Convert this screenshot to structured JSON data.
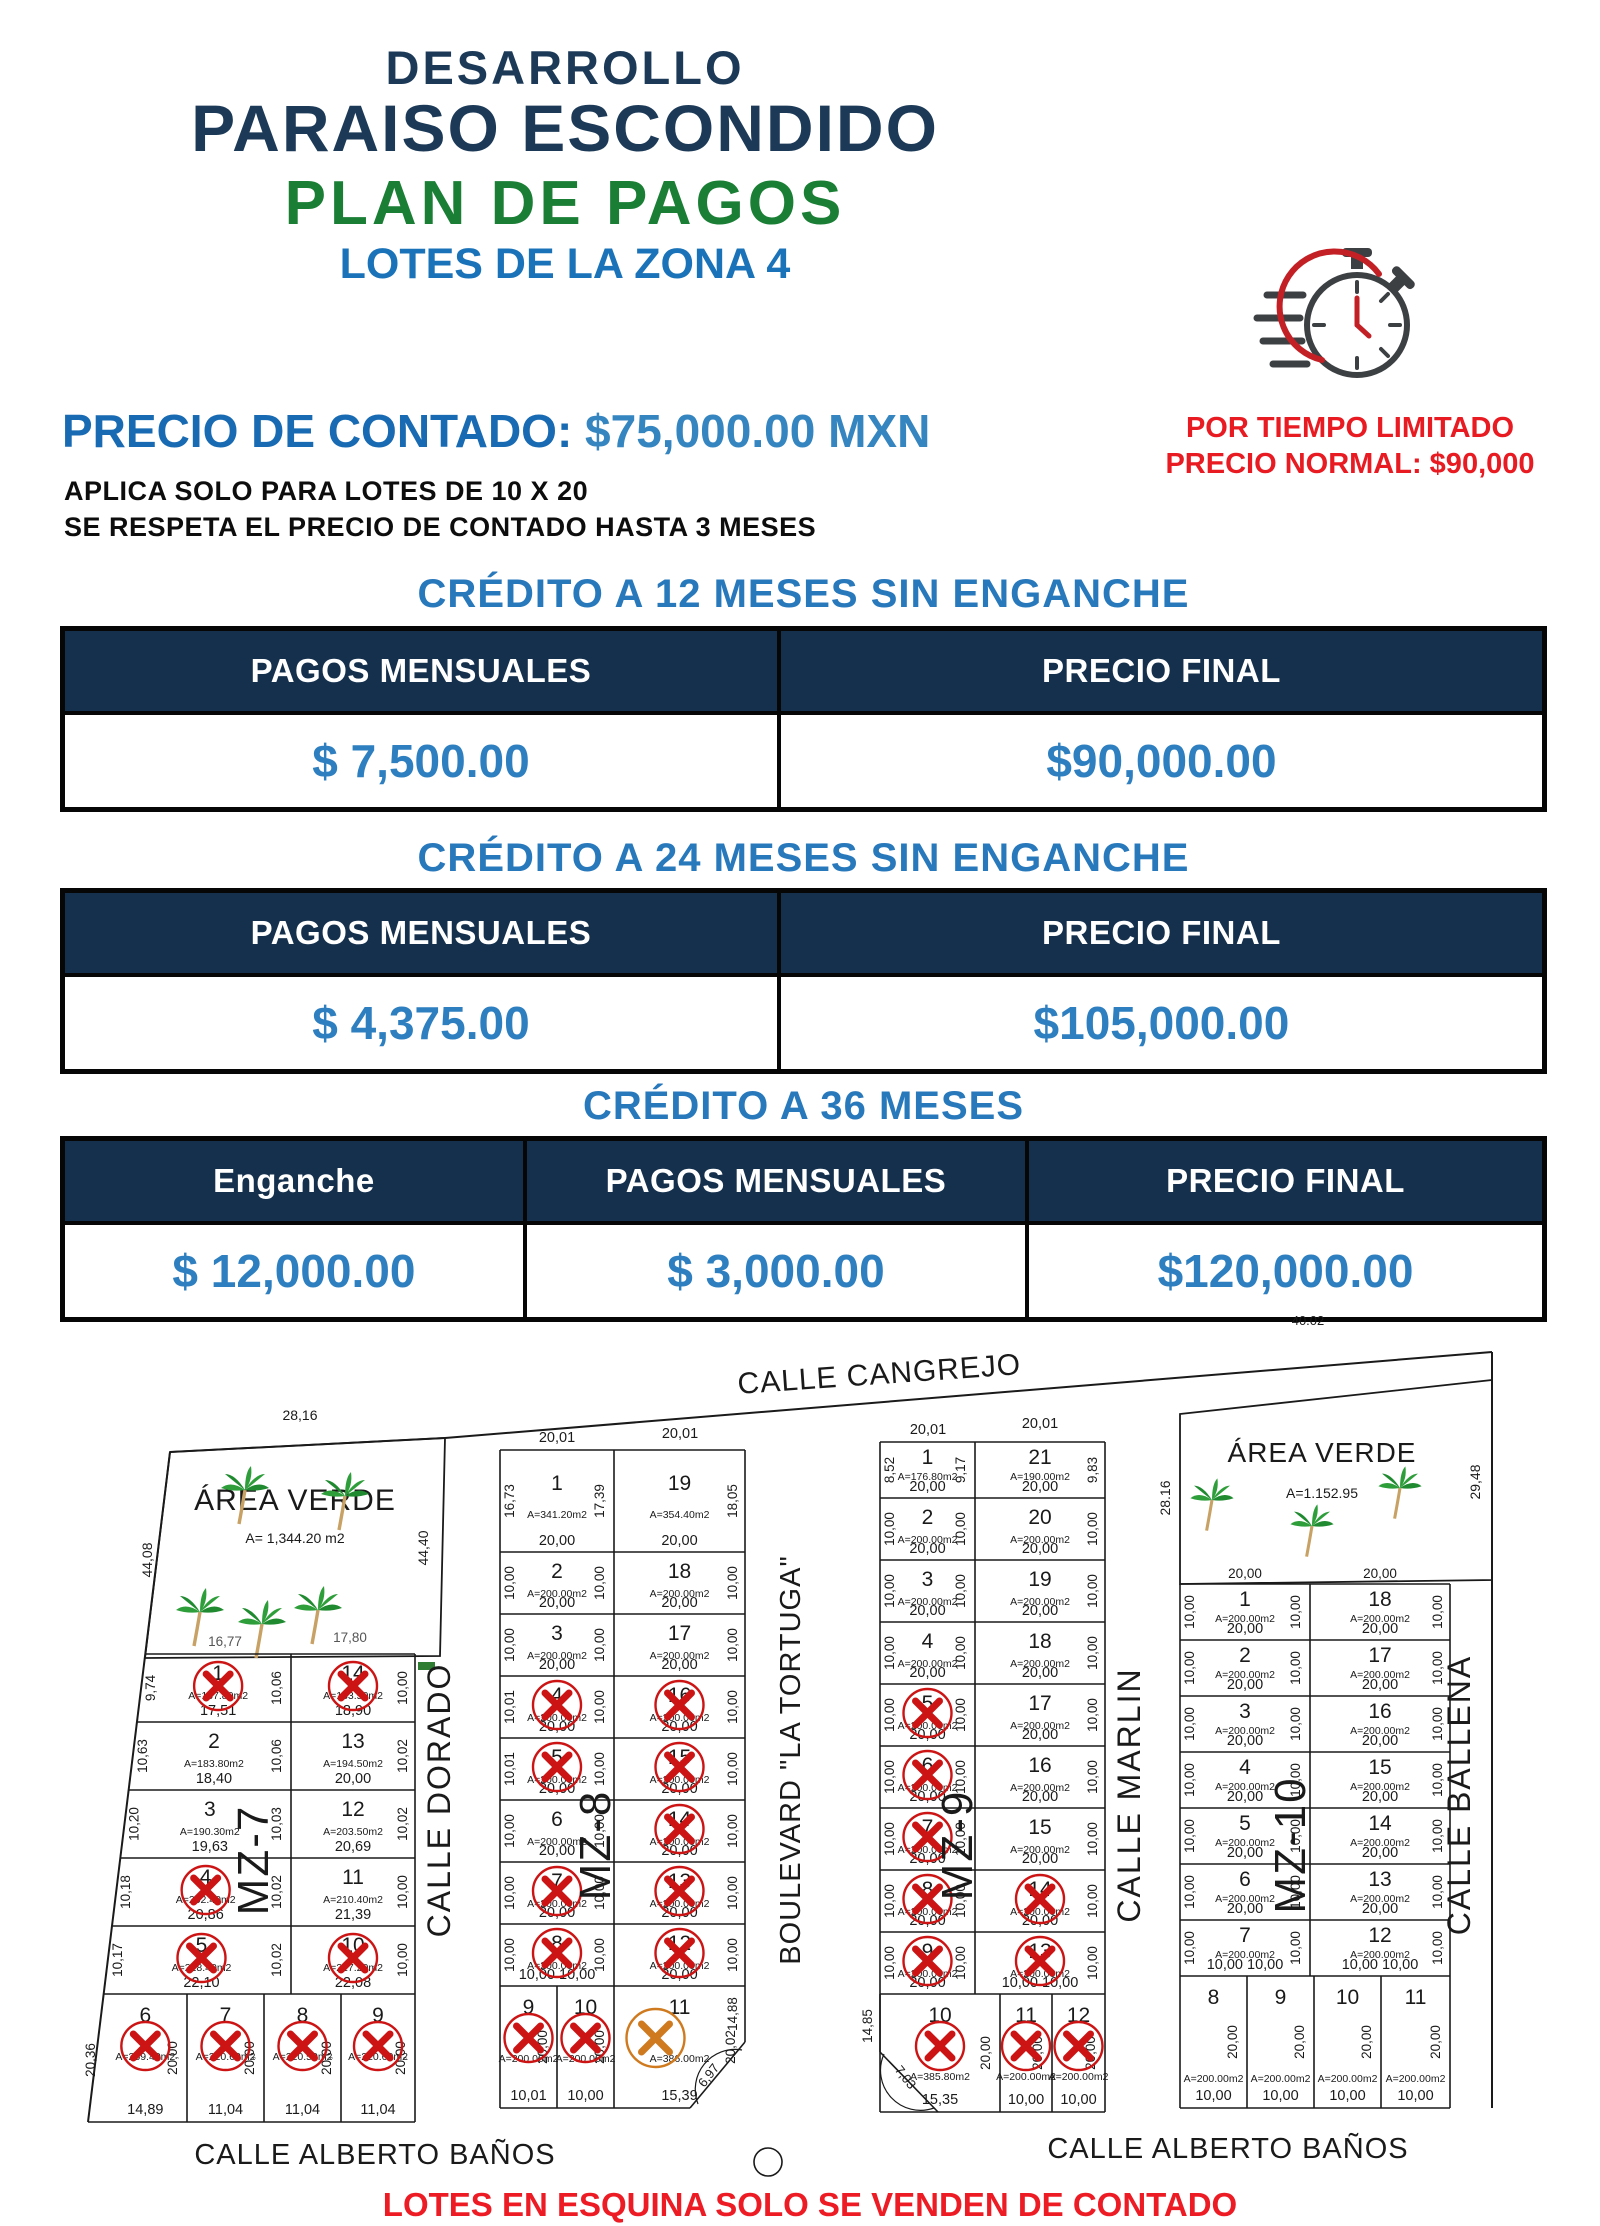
{
  "header": {
    "line1": "DESARROLLO",
    "line2": "PARAISO ESCONDIDO",
    "line3": "PLAN DE PAGOS",
    "zone_title": "LOTES DE LA ZONA 4",
    "cash_label": "PRECIO DE CONTADO:",
    "cash_value": " $75,000.00 MXN",
    "note1": "APLICA SOLO PARA LOTES DE 10 X 20",
    "note2": "SE RESPETA EL PRECIO DE CONTADO HASTA 3 MESES",
    "limited1": "POR TIEMPO LIMITADO",
    "limited2": "PRECIO NORMAL: $90,000",
    "stopwatch_icon": "stopwatch-icon"
  },
  "colors": {
    "navy": "#14304d",
    "title_navy": "#1c3a57",
    "green": "#1a7e35",
    "blue": "#2e7fc0",
    "red": "#e81b22",
    "sold_x": "#cc1414",
    "corner_x": "#cf7a1e"
  },
  "tables": [
    {
      "title": "CRÉDITO A 12 MESES SIN ENGANCHE",
      "headers": [
        "PAGOS MENSUALES",
        "PRECIO FINAL"
      ],
      "values": [
        "$ 7,500.00",
        "$90,000.00"
      ]
    },
    {
      "title": "CRÉDITO A 24 MESES SIN ENGANCHE",
      "headers": [
        "PAGOS MENSUALES",
        "PRECIO FINAL"
      ],
      "values": [
        "$ 4,375.00",
        "$105,000.00"
      ]
    },
    {
      "title": "CRÉDITO A 36 MESES",
      "headers": [
        "Enganche",
        "PAGOS MENSUALES",
        "PRECIO FINAL"
      ],
      "values": [
        "$ 12,000.00",
        "$ 3,000.00",
        "$120,000.00"
      ]
    }
  ],
  "map": {
    "note": "LOTES EN ESQUINA SOLO SE VENDEN DE CONTADO",
    "streets": {
      "cangrejo": "CALLE CANGREJO",
      "dorado": "CALLE DORADO",
      "boulevard": "BOULEVARD \"LA TORTUGA\"",
      "marlin": "CALLE MARLIN",
      "ballena": "CALLE BALLENA",
      "alberto_l": "CALLE ALBERTO BAÑOS",
      "alberto_r": "CALLE ALBERTO BAÑOS"
    },
    "outer_dims": {
      "top_left": "28,16",
      "top_right": "40.02",
      "left_side": "44,08",
      "av_left_right": "44,40",
      "av_right_left": "28.16",
      "av_right_right": "29,48"
    },
    "av_left": {
      "label": "ÁREA VERDE",
      "area": "A= 1,344.20 m2"
    },
    "av_right": {
      "label": "ÁREA VERDE",
      "area": "A=1.152.95"
    },
    "mz7": {
      "label": "MZ-7",
      "top_dims": [
        "16,77",
        "17,80"
      ],
      "rows": [
        {
          "l": [
            "1",
            "A=167.80m2",
            "17,51",
            1
          ],
          "r": [
            "14",
            "A=183.50m2",
            "18,90",
            1
          ],
          "d": [
            "9,74",
            "10,06",
            "10,00"
          ]
        },
        {
          "l": [
            "2",
            "A=183.80m2",
            "18,40",
            0
          ],
          "r": [
            "13",
            "A=194.50m2",
            "20,00",
            0
          ],
          "d": [
            "10,63",
            "10,06",
            "10,02"
          ]
        },
        {
          "l": [
            "3",
            "A=190.30m2",
            "19,63",
            0
          ],
          "r": [
            "12",
            "A=203.50m2",
            "20,69",
            0
          ],
          "d": [
            "10,20",
            "10,03",
            "10,02"
          ]
        },
        {
          "l": [
            "4",
            "A=202.40m2",
            "20,86",
            1
          ],
          "r": [
            "11",
            "A=210.40m2",
            "21,39",
            0
          ],
          "d": [
            "10,18",
            "10,02",
            "10,00"
          ]
        },
        {
          "l": [
            "5",
            "A=218.40m2",
            "22,10",
            1
          ],
          "r": [
            "10",
            "A=217.20m2",
            "22,08",
            1
          ],
          "d": [
            "10,17",
            "10,02",
            "10,00"
          ]
        }
      ],
      "bottom": [
        [
          "6",
          "A=259.40m2",
          "14,89",
          1,
          "20,00"
        ],
        [
          "7",
          "A=220.60m2",
          "11,04",
          1,
          "20,00"
        ],
        [
          "8",
          "A=220.50m2",
          "11,04",
          1,
          "20,00"
        ],
        [
          "9",
          "A=220.60m2",
          "11,04",
          1,
          "20,00"
        ]
      ],
      "bottom_left_dim": "20,36"
    },
    "mz8": {
      "label": "MZ-8",
      "top_dims": [
        "20,01",
        "20,01"
      ],
      "rows": [
        {
          "l": [
            "1",
            "A=341.20m2",
            "20,00",
            0
          ],
          "r": [
            "19",
            "A=354.40m2",
            "20,00",
            0
          ],
          "d": [
            "16,73",
            "17,39",
            "18,05"
          ]
        },
        {
          "l": [
            "2",
            "A=200.00m2",
            "20,00",
            0
          ],
          "r": [
            "18",
            "A=200.00m2",
            "20,00",
            0
          ],
          "d": [
            "10,00",
            "10,00",
            "10,00"
          ]
        },
        {
          "l": [
            "3",
            "A=200.00m2",
            "20,00",
            0
          ],
          "r": [
            "17",
            "A=200.00m2",
            "20,00",
            0
          ],
          "d": [
            "10,00",
            "10,00",
            "10,00"
          ]
        },
        {
          "l": [
            "4",
            "A=200.00m2",
            "20,00",
            1
          ],
          "r": [
            "16",
            "A=200.00m2",
            "20,00",
            1
          ],
          "d": [
            "10,01",
            "10,00",
            "10,00"
          ]
        },
        {
          "l": [
            "5",
            "A=200.00m2",
            "20,00",
            1
          ],
          "r": [
            "15",
            "A=200.00m2",
            "20,00",
            1
          ],
          "d": [
            "10,01",
            "10,00",
            "10,00"
          ]
        },
        {
          "l": [
            "6",
            "A=200.00m2",
            "20,00",
            0
          ],
          "r": [
            "14",
            "A=200.00m2",
            "20,00",
            1
          ],
          "d": [
            "10,00",
            "10,00",
            "10,00"
          ]
        },
        {
          "l": [
            "7",
            "A=200.00m2",
            "20,00",
            1
          ],
          "r": [
            "13",
            "A=200.00m2",
            "20,00",
            1
          ],
          "d": [
            "10,00",
            "10,00",
            "10,00"
          ]
        },
        {
          "l": [
            "8",
            "A=200.00m2",
            "10,00   10,00",
            1
          ],
          "r": [
            "12",
            "A=200.00m2",
            "20,00",
            1
          ],
          "d": [
            "10,00",
            "10,00",
            "10,00"
          ]
        }
      ],
      "bottom": [
        [
          "9",
          "A=200.00m2",
          "10,01",
          1,
          "20,00"
        ],
        [
          "10",
          "A=200.00m2",
          "10,00",
          1,
          "20,00"
        ],
        [
          "11",
          "A=386.00m2",
          "15,39",
          2,
          "20,02"
        ]
      ],
      "corner": {
        "side": "14,88",
        "curve": "6,97"
      }
    },
    "mz9": {
      "label": "MZ-9",
      "top_dims": [
        "20,01",
        "20,01"
      ],
      "rows": [
        {
          "l": [
            "1",
            "A=176.80m2",
            "20,00",
            0
          ],
          "r": [
            "21",
            "A=190.00m2",
            "20,00",
            0
          ],
          "d": [
            "8,52",
            "9,17",
            "9,83"
          ]
        },
        {
          "l": [
            "2",
            "A=200.00m2",
            "20,00",
            0
          ],
          "r": [
            "20",
            "A=200.00m2",
            "20,00",
            0
          ],
          "d": [
            "10,00",
            "10,00",
            "10,00"
          ]
        },
        {
          "l": [
            "3",
            "A=200.00m2",
            "20,00",
            0
          ],
          "r": [
            "19",
            "A=200.00m2",
            "20,00",
            0
          ],
          "d": [
            "10,00",
            "10,00",
            "10,00"
          ]
        },
        {
          "l": [
            "4",
            "A=200.00m2",
            "20,00",
            0
          ],
          "r": [
            "18",
            "A=200.00m2",
            "20,00",
            0
          ],
          "d": [
            "10,00",
            "10,00",
            "10,00"
          ]
        },
        {
          "l": [
            "5",
            "A=200.00m2",
            "20,00",
            1
          ],
          "r": [
            "17",
            "A=200.00m2",
            "20,00",
            0
          ],
          "d": [
            "10,00",
            "10,00",
            "10,00"
          ]
        },
        {
          "l": [
            "6",
            "A=200.00m2",
            "20,00",
            1
          ],
          "r": [
            "16",
            "A=200.00m2",
            "20,00",
            0
          ],
          "d": [
            "10,00",
            "10,00",
            "10,00"
          ]
        },
        {
          "l": [
            "7",
            "A=200.00m2",
            "20,00",
            1
          ],
          "r": [
            "15",
            "A=200.00m2",
            "20,00",
            0
          ],
          "d": [
            "10,00",
            "10,00",
            "10,00"
          ]
        },
        {
          "l": [
            "8",
            "A=200.00m2",
            "20,00",
            1
          ],
          "r": [
            "14",
            "A=200.00m2",
            "20,00",
            1
          ],
          "d": [
            "10,00",
            "10,00",
            "10,00"
          ]
        },
        {
          "l": [
            "9",
            "A=200.00m2",
            "20,00",
            1
          ],
          "r": [
            "13",
            "A=200.00m2",
            "10,00   10,00",
            1
          ],
          "d": [
            "10,00",
            "10,00",
            "10,00"
          ]
        }
      ],
      "bottom": [
        [
          "10",
          "A=385.80m2",
          "15,35",
          1,
          "20,00"
        ],
        [
          "11",
          "A=200.00m2",
          "10,00",
          1,
          "20,00"
        ],
        [
          "12",
          "A=200.00m2",
          "10,00",
          1,
          "20,00"
        ]
      ],
      "corner": {
        "side": "14,85",
        "curve": "7,03"
      }
    },
    "mz10": {
      "label": "MZ-10",
      "av_dims": [
        "20,00",
        "20,00"
      ],
      "rows": [
        {
          "l": [
            "1",
            "A=200.00m2",
            "20,00",
            0
          ],
          "r": [
            "18",
            "A=200.00m2",
            "20,00",
            0
          ],
          "d": [
            "10,00",
            "10,00",
            "10,00"
          ]
        },
        {
          "l": [
            "2",
            "A=200.00m2",
            "20,00",
            0
          ],
          "r": [
            "17",
            "A=200.00m2",
            "20,00",
            0
          ],
          "d": [
            "10,00",
            "10,00",
            "10,00"
          ]
        },
        {
          "l": [
            "3",
            "A=200.00m2",
            "20,00",
            0
          ],
          "r": [
            "16",
            "A=200.00m2",
            "20,00",
            0
          ],
          "d": [
            "10,00",
            "10,00",
            "10,00"
          ]
        },
        {
          "l": [
            "4",
            "A=200.00m2",
            "20,00",
            0
          ],
          "r": [
            "15",
            "A=200.00m2",
            "20,00",
            0
          ],
          "d": [
            "10,00",
            "10,00",
            "10,00"
          ]
        },
        {
          "l": [
            "5",
            "A=200.00m2",
            "20,00",
            0
          ],
          "r": [
            "14",
            "A=200.00m2",
            "20,00",
            0
          ],
          "d": [
            "10,00",
            "10,00",
            "10,00"
          ]
        },
        {
          "l": [
            "6",
            "A=200.00m2",
            "20,00",
            0
          ],
          "r": [
            "13",
            "A=200.00m2",
            "20,00",
            0
          ],
          "d": [
            "10,00",
            "10,00",
            "10,00"
          ]
        },
        {
          "l": [
            "7",
            "A=200.00m2",
            "10,00   10,00",
            0
          ],
          "r": [
            "12",
            "A=200.00m2",
            "10,00   10,00",
            0
          ],
          "d": [
            "10,00",
            "10,00",
            "10,00"
          ]
        }
      ],
      "bottom": [
        [
          "8",
          "A=200.00m2",
          "10,00",
          0,
          "20,00"
        ],
        [
          "9",
          "A=200.00m2",
          "10,00",
          0,
          "20,00"
        ],
        [
          "10",
          "A=200.00m2",
          "10,00",
          0,
          "20,00"
        ],
        [
          "11",
          "A=200.00m2",
          "10,00",
          0,
          "20,00"
        ]
      ]
    }
  }
}
